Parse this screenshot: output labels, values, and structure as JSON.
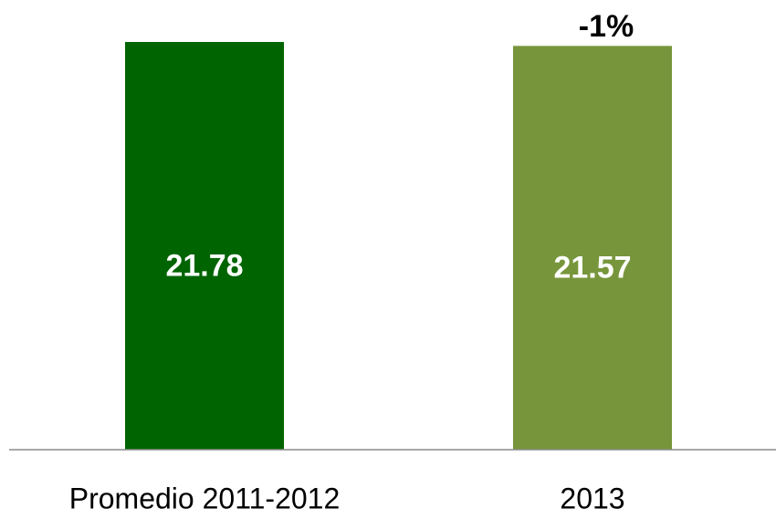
{
  "chart_data": {
    "type": "bar",
    "categories": [
      "Promedio 2011-2012",
      "2013"
    ],
    "values": [
      21.78,
      21.57
    ],
    "colors": [
      "#006400",
      "#77963b"
    ],
    "annotation": "-1%",
    "ylim": [
      0,
      22
    ]
  }
}
